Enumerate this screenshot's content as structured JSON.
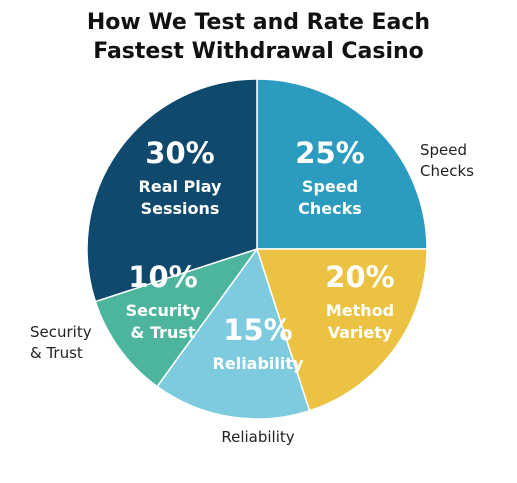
{
  "title_lines": [
    "How We Test and Rate Each",
    "Fastest Withdrawal Casino"
  ],
  "chart_data": {
    "type": "pie",
    "title": "How We Test and Rate Each Fastest Withdrawal Casino",
    "slices": [
      {
        "name": "Speed Checks",
        "lines": [
          "Speed",
          "Checks"
        ],
        "value": 25,
        "label": "25%",
        "color": "#2b9bc0"
      },
      {
        "name": "Method Variety",
        "lines": [
          "Method",
          "Variety"
        ],
        "value": 20,
        "label": "20%",
        "color": "#ecc242"
      },
      {
        "name": "Reliability",
        "lines": [
          "Reliability"
        ],
        "value": 15,
        "label": "15%",
        "color": "#7ecbe0"
      },
      {
        "name": "Security & Trust",
        "lines": [
          "Security",
          "& Trust"
        ],
        "value": 10,
        "label": "10%",
        "color": "#4db59d"
      },
      {
        "name": "Real Play Sessions",
        "lines": [
          "Real Play",
          "Sessions"
        ],
        "value": 30,
        "label": "30%",
        "color": "#0f4a6e"
      }
    ],
    "external_labels": [
      {
        "lines": [
          "Speed",
          "Checks"
        ]
      },
      {
        "lines": [
          "Security",
          "& Trust"
        ]
      },
      {
        "lines": [
          "Reliability"
        ]
      }
    ]
  }
}
